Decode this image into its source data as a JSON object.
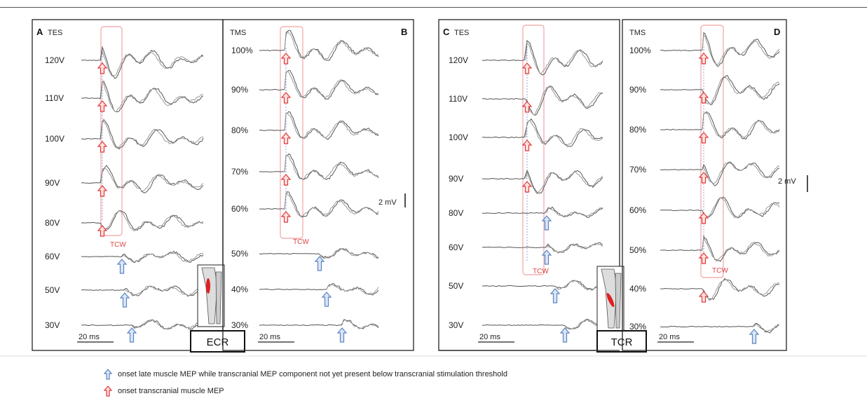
{
  "panels": [
    {
      "letter": "A",
      "modality": "TES",
      "levels": [
        "120V",
        "110V",
        "100V",
        "90V",
        "80V",
        "60V",
        "50V",
        "30V"
      ],
      "onset_markers": [
        "red",
        "red",
        "red",
        "red",
        "red",
        "blue",
        "blue",
        "blue"
      ],
      "tcw_label": "TCW",
      "scalebar_time": "20 ms"
    },
    {
      "letter": "B",
      "modality": "TMS",
      "levels": [
        "100%",
        "90%",
        "80%",
        "70%",
        "60%",
        "50%",
        "40%",
        "30%"
      ],
      "onset_markers": [
        "red",
        "red",
        "red",
        "red",
        "red",
        "blue",
        "blue",
        "blue"
      ],
      "tcw_label": "TCW",
      "scalebar_time": "20 ms",
      "scalebar_amplitude": "2 mV"
    },
    {
      "letter": "C",
      "modality": "TES",
      "levels": [
        "120V",
        "110V",
        "100V",
        "90V",
        "80V",
        "60V",
        "50V",
        "30V"
      ],
      "onset_markers": [
        "red",
        "red",
        "red",
        "red",
        "blue",
        "blue",
        "blue",
        "blue"
      ],
      "tcw_label": "TCW",
      "scalebar_time": "20 ms"
    },
    {
      "letter": "D",
      "modality": "TMS",
      "levels": [
        "100%",
        "90%",
        "80%",
        "70%",
        "60%",
        "50%",
        "40%",
        "30%"
      ],
      "onset_markers": [
        "red",
        "red",
        "red",
        "red",
        "red",
        "red",
        "red",
        "blue"
      ],
      "tcw_label": "TCW",
      "scalebar_time": "20 ms",
      "scalebar_amplitude": "2 mV"
    }
  ],
  "muscles": {
    "left": "ECR",
    "right": "TCR"
  },
  "legend": {
    "blue": "onset late muscle MEP while transcranial MEP component not yet present below transcranial stimulation threshold",
    "red": "onset transcranial muscle MEP"
  },
  "colors": {
    "red_arrow": "#e03a3a",
    "blue_arrow": "#5b84c4",
    "trace": "#555555",
    "tcw_box": "#e88"
  }
}
